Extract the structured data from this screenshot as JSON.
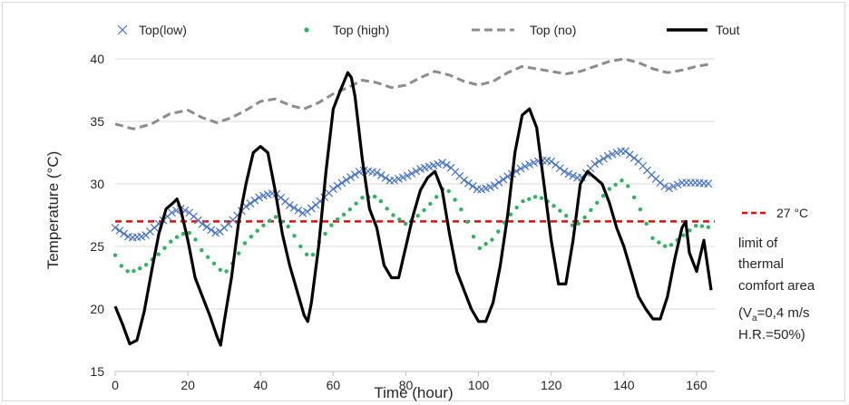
{
  "chart_data": {
    "type": "line",
    "xlabel": "Time (hour)",
    "ylabel": "Temperature (°C)",
    "xlim": [
      0,
      165
    ],
    "ylim": [
      15,
      40
    ],
    "x_ticks": [
      0,
      20,
      40,
      60,
      80,
      100,
      120,
      140,
      160
    ],
    "y_ticks": [
      15,
      20,
      25,
      30,
      35,
      40
    ],
    "x_tick_labels": [
      "0",
      "20",
      "40",
      "60",
      "80",
      "100",
      "120",
      "140",
      "160"
    ],
    "y_tick_labels": [
      "15",
      "20",
      "25",
      "30",
      "35",
      "40"
    ],
    "legend_position": "top",
    "series": [
      {
        "name": "Top(low)",
        "style": "x-markers",
        "color": "#4472c4",
        "x": [
          0,
          4,
          8,
          12,
          16,
          18,
          20,
          24,
          28,
          32,
          36,
          40,
          44,
          48,
          52,
          56,
          60,
          64,
          68,
          72,
          76,
          80,
          84,
          88,
          90,
          92,
          96,
          100,
          104,
          108,
          112,
          116,
          118,
          120,
          124,
          128,
          132,
          136,
          140,
          144,
          148,
          152,
          156,
          160,
          164
        ],
        "y": [
          26.5,
          25.7,
          25.8,
          26.8,
          27.8,
          28.0,
          27.8,
          26.8,
          26.0,
          27.0,
          28.2,
          29.0,
          29.3,
          28.3,
          27.6,
          28.5,
          29.6,
          30.4,
          31.1,
          30.9,
          30.2,
          30.6,
          31.2,
          31.5,
          31.7,
          31.4,
          30.3,
          29.5,
          29.8,
          30.6,
          31.3,
          31.8,
          31.9,
          31.8,
          30.9,
          30.4,
          31.6,
          32.3,
          32.7,
          31.8,
          30.6,
          29.6,
          30.1,
          30.1,
          30.0
        ]
      },
      {
        "name": "Top (high)",
        "style": "dot-markers",
        "color": "#2db462",
        "x": [
          0,
          2,
          4,
          8,
          12,
          16,
          20,
          22,
          24,
          28,
          30,
          32,
          36,
          40,
          44,
          48,
          52,
          54,
          56,
          60,
          64,
          68,
          72,
          76,
          80,
          84,
          88,
          90,
          92,
          96,
          100,
          104,
          108,
          112,
          116,
          118,
          120,
          124,
          126,
          128,
          132,
          136,
          140,
          144,
          148,
          152,
          156,
          160,
          164
        ],
        "y": [
          24.3,
          23.3,
          22.9,
          23.4,
          24.4,
          25.6,
          26.2,
          25.6,
          24.6,
          23.4,
          22.8,
          23.5,
          25.4,
          26.5,
          27.4,
          26.5,
          24.5,
          24.1,
          25.3,
          26.9,
          27.8,
          28.9,
          29.0,
          27.6,
          26.8,
          27.6,
          28.8,
          29.6,
          29.4,
          27.6,
          24.8,
          25.6,
          27.3,
          28.6,
          29.0,
          28.8,
          28.4,
          27.5,
          26.6,
          26.9,
          28.3,
          29.6,
          30.4,
          28.3,
          25.6,
          24.9,
          25.8,
          26.7,
          26.5
        ]
      },
      {
        "name": "Top (no)",
        "style": "dashed-line",
        "color": "#8c8c8c",
        "x": [
          0,
          5,
          10,
          15,
          20,
          24,
          28,
          32,
          36,
          40,
          44,
          48,
          52,
          56,
          60,
          64,
          68,
          72,
          76,
          80,
          84,
          88,
          92,
          96,
          100,
          104,
          108,
          112,
          116,
          120,
          124,
          128,
          132,
          136,
          140,
          144,
          148,
          152,
          156,
          160,
          164
        ],
        "y": [
          34.8,
          34.4,
          34.8,
          35.6,
          35.9,
          35.3,
          34.9,
          35.3,
          35.9,
          36.6,
          36.8,
          36.3,
          36.0,
          36.5,
          37.2,
          37.7,
          38.3,
          38.1,
          37.7,
          37.9,
          38.5,
          39.0,
          38.7,
          38.2,
          37.9,
          38.2,
          38.9,
          39.4,
          39.2,
          39.0,
          38.8,
          39.0,
          39.4,
          39.8,
          40.0,
          39.7,
          39.2,
          38.9,
          39.1,
          39.4,
          39.6
        ]
      },
      {
        "name": "Tout",
        "style": "solid-line",
        "color": "#000000",
        "x": [
          0,
          2,
          4,
          6,
          8,
          10,
          12,
          14,
          16,
          17,
          18,
          20,
          22,
          24,
          26,
          28,
          29,
          30,
          32,
          34,
          36,
          38,
          40,
          42,
          44,
          46,
          48,
          50,
          52,
          53,
          54,
          56,
          58,
          60,
          62,
          64,
          65,
          66,
          68,
          70,
          72,
          74,
          76,
          78,
          80,
          82,
          84,
          86,
          88,
          90,
          92,
          94,
          96,
          98,
          100,
          102,
          104,
          106,
          108,
          110,
          112,
          114,
          116,
          118,
          120,
          122,
          124,
          126,
          128,
          130,
          132,
          134,
          136,
          138,
          140,
          142,
          144,
          146,
          148,
          150,
          152,
          154,
          156,
          157,
          158,
          160,
          162,
          164
        ],
        "y": [
          20.2,
          18.8,
          17.2,
          17.5,
          19.8,
          23.0,
          26.0,
          28.0,
          28.5,
          28.8,
          28.0,
          25.5,
          22.5,
          21.0,
          19.5,
          17.8,
          17.1,
          19.0,
          22.5,
          27.0,
          30.0,
          32.5,
          33.0,
          32.5,
          29.5,
          26.0,
          23.5,
          21.5,
          19.5,
          19.0,
          20.5,
          25.0,
          31.0,
          36.0,
          37.5,
          38.9,
          38.5,
          37.0,
          32.0,
          28.0,
          26.5,
          23.5,
          22.5,
          22.5,
          25.0,
          27.5,
          29.5,
          30.5,
          31.0,
          29.5,
          26.0,
          23.0,
          21.5,
          20.0,
          19.0,
          19.0,
          20.5,
          23.5,
          27.5,
          32.5,
          35.5,
          36.0,
          34.5,
          30.0,
          25.5,
          22.0,
          22.0,
          25.5,
          30.0,
          31.0,
          30.5,
          30.0,
          28.5,
          26.5,
          25.0,
          23.0,
          21.0,
          20.0,
          19.2,
          19.2,
          21.0,
          24.0,
          26.5,
          27.0,
          24.5,
          23.0,
          25.5,
          21.5
        ]
      }
    ],
    "reference_line": {
      "y": 27,
      "style": "dashed",
      "color": "#ff0000",
      "label": "27 °C",
      "caption_lines": [
        "limit of",
        "thermal",
        "comfort area",
        "(V",
        "a",
        "=0,4 m/s",
        "H.R.=50%)"
      ]
    }
  }
}
